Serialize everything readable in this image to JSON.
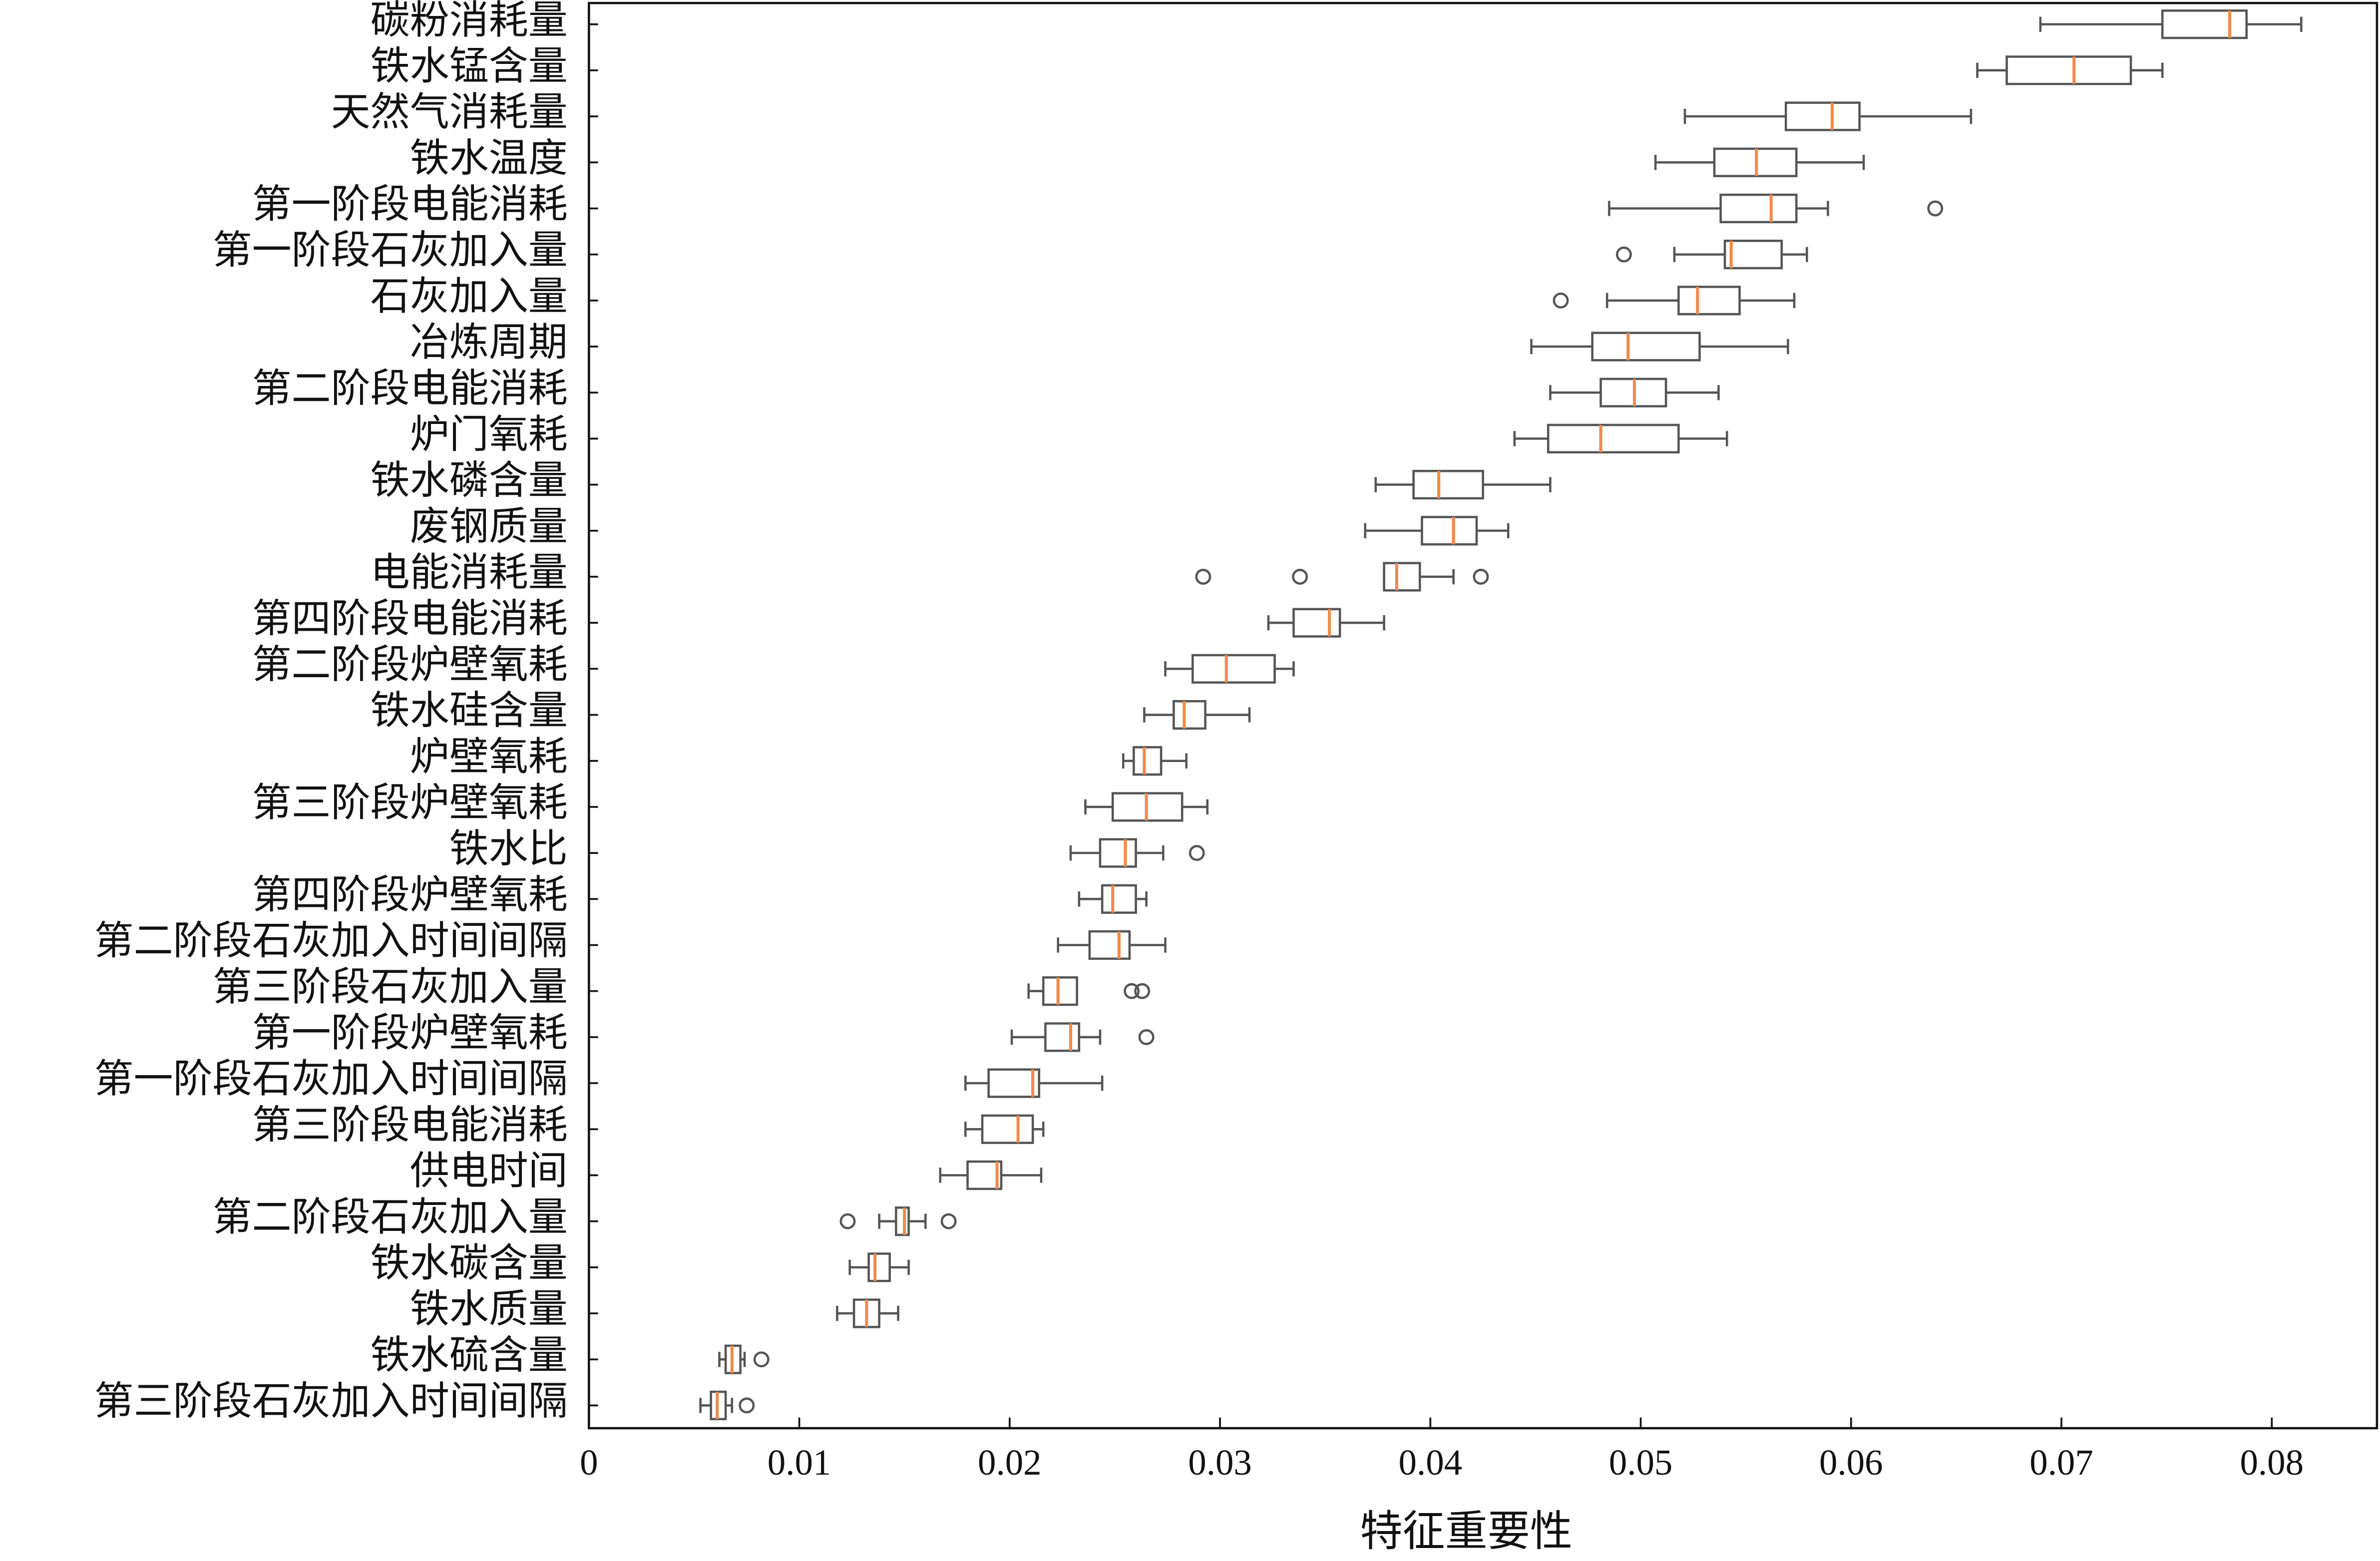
{
  "chart_data": {
    "type": "box",
    "categories": [
      "碳粉消耗量",
      "铁水锰含量",
      "天然气消耗量",
      "铁水温度",
      "第一阶段电能消耗",
      "第一阶段石灰加入量",
      "石灰加入量",
      "冶炼周期",
      "第二阶段电能消耗",
      "炉门氧耗",
      "铁水磷含量",
      "废钢质量",
      "电能消耗量",
      "第四阶段电能消耗",
      "第二阶段炉壁氧耗",
      "铁水硅含量",
      "炉壁氧耗",
      "第三阶段炉壁氧耗",
      "铁水比",
      "第四阶段炉壁氧耗",
      "第二阶段石灰加入时间间隔",
      "第三阶段石灰加入量",
      "第一阶段炉壁氧耗",
      "第一阶段石灰加入时间间隔",
      "第三阶段电能消耗",
      "供电时间",
      "第二阶段石灰加入量",
      "铁水碳含量",
      "铁水质量",
      "铁水硫含量",
      "第三阶段石灰加入时间间隔"
    ],
    "whislo": [
      0.069,
      0.066,
      0.0521,
      0.0507,
      0.0485,
      0.0516,
      0.0484,
      0.0448,
      0.0457,
      0.044,
      0.0374,
      0.0369,
      0.0378,
      0.0323,
      0.0274,
      0.0264,
      0.0254,
      0.0236,
      0.0229,
      0.0233,
      0.0223,
      0.0209,
      0.0201,
      0.0179,
      0.0179,
      0.0167,
      0.0138,
      0.0124,
      0.0118,
      0.0062,
      0.0053
    ],
    "q1": [
      0.0748,
      0.0674,
      0.0569,
      0.0535,
      0.0538,
      0.054,
      0.0518,
      0.0477,
      0.0481,
      0.0456,
      0.0392,
      0.0396,
      0.0378,
      0.0335,
      0.0287,
      0.0278,
      0.0259,
      0.0249,
      0.0243,
      0.0244,
      0.0238,
      0.0216,
      0.0217,
      0.019,
      0.0187,
      0.018,
      0.0146,
      0.0133,
      0.0126,
      0.0065,
      0.0058
    ],
    "med": [
      0.078,
      0.0706,
      0.0591,
      0.0555,
      0.0562,
      0.0543,
      0.0527,
      0.0494,
      0.0497,
      0.0481,
      0.0404,
      0.0411,
      0.0384,
      0.0352,
      0.0303,
      0.0283,
      0.0264,
      0.0265,
      0.0255,
      0.0249,
      0.0252,
      0.0223,
      0.0229,
      0.0211,
      0.0204,
      0.0194,
      0.015,
      0.0136,
      0.0132,
      0.0068,
      0.0061
    ],
    "q3": [
      0.0788,
      0.0733,
      0.0604,
      0.0574,
      0.0574,
      0.0567,
      0.0547,
      0.0528,
      0.0512,
      0.0518,
      0.0425,
      0.0422,
      0.0395,
      0.0357,
      0.0326,
      0.0293,
      0.0272,
      0.0282,
      0.026,
      0.026,
      0.0257,
      0.0232,
      0.0233,
      0.0214,
      0.0211,
      0.0196,
      0.0152,
      0.0143,
      0.0138,
      0.0072,
      0.0065
    ],
    "whishi": [
      0.0814,
      0.0748,
      0.0657,
      0.0606,
      0.0589,
      0.0579,
      0.0573,
      0.057,
      0.0537,
      0.0541,
      0.0457,
      0.0437,
      0.0411,
      0.0378,
      0.0335,
      0.0314,
      0.0284,
      0.0294,
      0.0273,
      0.0265,
      0.0274,
      0.0232,
      0.0243,
      0.0244,
      0.0216,
      0.0215,
      0.016,
      0.0152,
      0.0147,
      0.0074,
      0.0068
    ],
    "fliers": [
      [],
      [],
      [],
      [],
      [
        0.064
      ],
      [
        0.0492
      ],
      [
        0.0462
      ],
      [],
      [],
      [],
      [],
      [],
      [
        0.0292,
        0.0338,
        0.0424
      ],
      [],
      [],
      [],
      [],
      [],
      [
        0.0289
      ],
      [],
      [],
      [
        0.0258,
        0.0263
      ],
      [
        0.0265
      ],
      [],
      [],
      [],
      [
        0.0123,
        0.0171
      ],
      [],
      [],
      [
        0.0082
      ],
      [
        0.0075
      ]
    ],
    "box_color": "#555555",
    "median_color": "#f08a4b",
    "xlabel": "特征重要性",
    "xlim": [
      0,
      0.085
    ],
    "xticks": [
      0,
      0.01,
      0.02,
      0.03,
      0.04,
      0.05,
      0.06,
      0.07,
      0.08
    ]
  }
}
